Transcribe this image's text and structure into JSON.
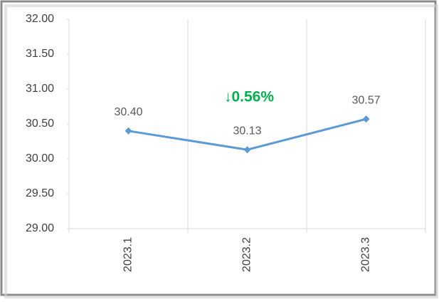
{
  "chart_data": {
    "type": "line",
    "categories": [
      "2023.1",
      "2023.2",
      "2023.3"
    ],
    "series": [
      {
        "color": "#5b9bd5",
        "values": [
          30.4,
          30.13,
          30.57
        ],
        "value_labels": [
          "30.40",
          "30.13",
          "30.57"
        ]
      }
    ],
    "ylim": [
      29,
      32
    ],
    "yticks": [
      {
        "value": 29,
        "label": "29.00"
      },
      {
        "value": 29.5,
        "label": "29.50"
      },
      {
        "value": 30,
        "label": "30.00"
      },
      {
        "value": 30.5,
        "label": "30.50"
      },
      {
        "value": 31,
        "label": "31.00"
      },
      {
        "value": 31.5,
        "label": "31.50"
      },
      {
        "value": 32,
        "label": "32.00"
      }
    ],
    "annotation": {
      "text": "↓0.56%",
      "color": "#00b050"
    },
    "vertical_grid": true
  }
}
